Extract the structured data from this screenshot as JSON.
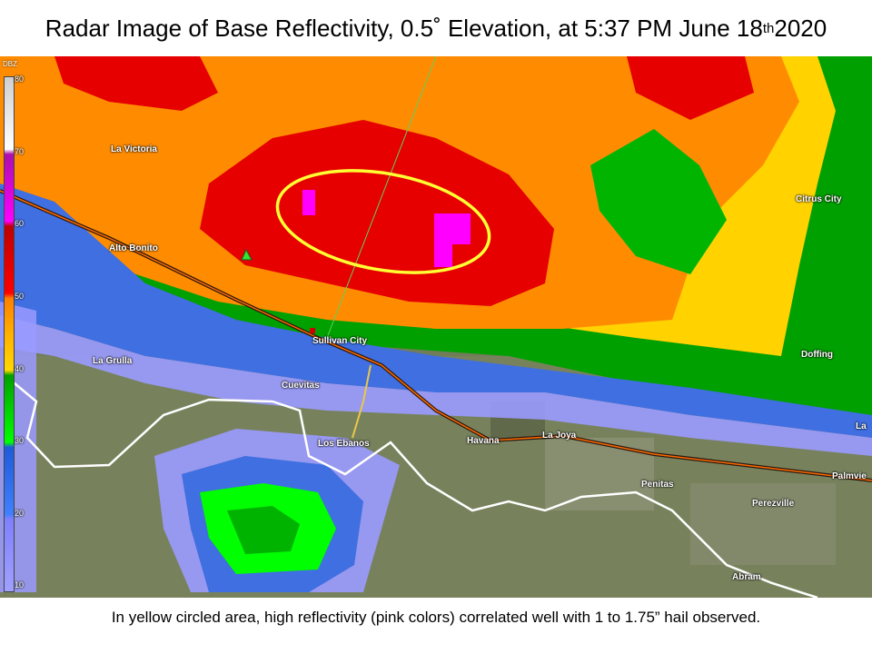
{
  "title": {
    "prefix": "Radar Image of Base Reflectivity, 0.5˚ Elevation, at 5:37 PM June 18",
    "suffix": "th",
    "year": " 2020"
  },
  "legend": {
    "unit": "DBZ",
    "ticks": [
      "80",
      "70",
      "60",
      "50",
      "40",
      "30",
      "20",
      "10"
    ]
  },
  "towns": {
    "la_victoria": "La Victoria",
    "alto_bonito": "Alto Bonito",
    "citrus_city": "Citrus City",
    "sullivan_city": "Sullivan City",
    "la_grulla": "La Grulla",
    "cuevitas": "Cuevitas",
    "doffing": "Doffing",
    "los_ebanos": "Los Ebanos",
    "havana": "Havana",
    "la_joya": "La Joya",
    "penitas": "Penitas",
    "perezville": "Perezville",
    "palmview": "Palmvie",
    "la_edge": "La",
    "abram": "Abram"
  },
  "caption": "In yellow circled area, high reflectivity (pink colors) correlated well with 1 to 1.75” hail observed.",
  "colors": {
    "pink": "#ff00ff",
    "red": "#e60000",
    "orange": "#ff8c00",
    "yellow": "#ffd200",
    "green": "#00b400",
    "blue": "#3f6fe0",
    "lavender": "#9a9aff",
    "circle": "#ffff33",
    "terrain": "#6f7a55"
  }
}
